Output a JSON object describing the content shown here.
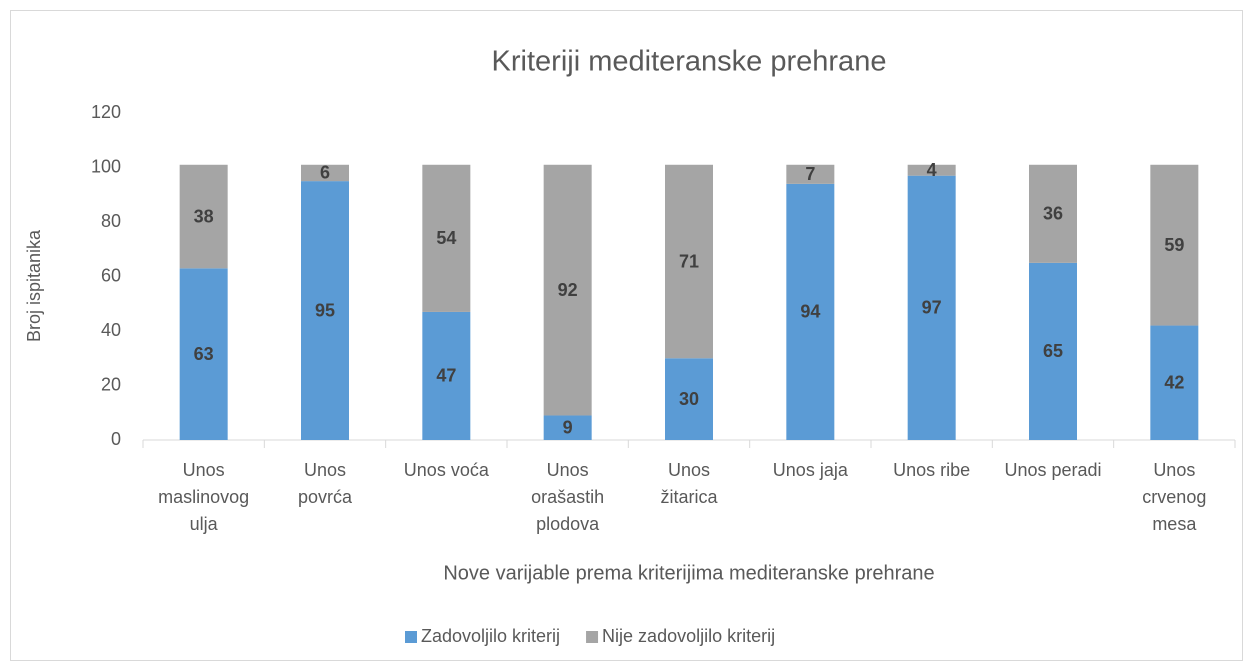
{
  "chart_data": {
    "type": "stacked_bar",
    "title": "Kriteriji mediteranske prehrane",
    "x_label": "Nove varijable prema kriterijima mediteranske prehrane",
    "y_label": "Broj ispitanika",
    "categories": [
      "Unos\nmaslinovog\nulja",
      "Unos\npovrća",
      "Unos voća",
      "Unos\norašastih\nplodova",
      "Unos\nžitarica",
      "Unos jaja",
      "Unos ribe",
      "Unos peradi",
      "Unos\ncrvenog\nmesa"
    ],
    "series": [
      {
        "name": "Zadovoljilo kriterij",
        "color": "#5b9bd5",
        "values": [
          63,
          95,
          47,
          9,
          30,
          94,
          97,
          65,
          42
        ]
      },
      {
        "name": "Nije zadovoljilo kriterij",
        "color": "#a5a5a5",
        "values": [
          38,
          6,
          54,
          92,
          71,
          7,
          4,
          36,
          59
        ]
      }
    ],
    "ylim": [
      0,
      120
    ],
    "yticks": [
      0,
      20,
      40,
      60,
      80,
      100,
      120
    ],
    "grid": false,
    "legend": "bottom"
  }
}
